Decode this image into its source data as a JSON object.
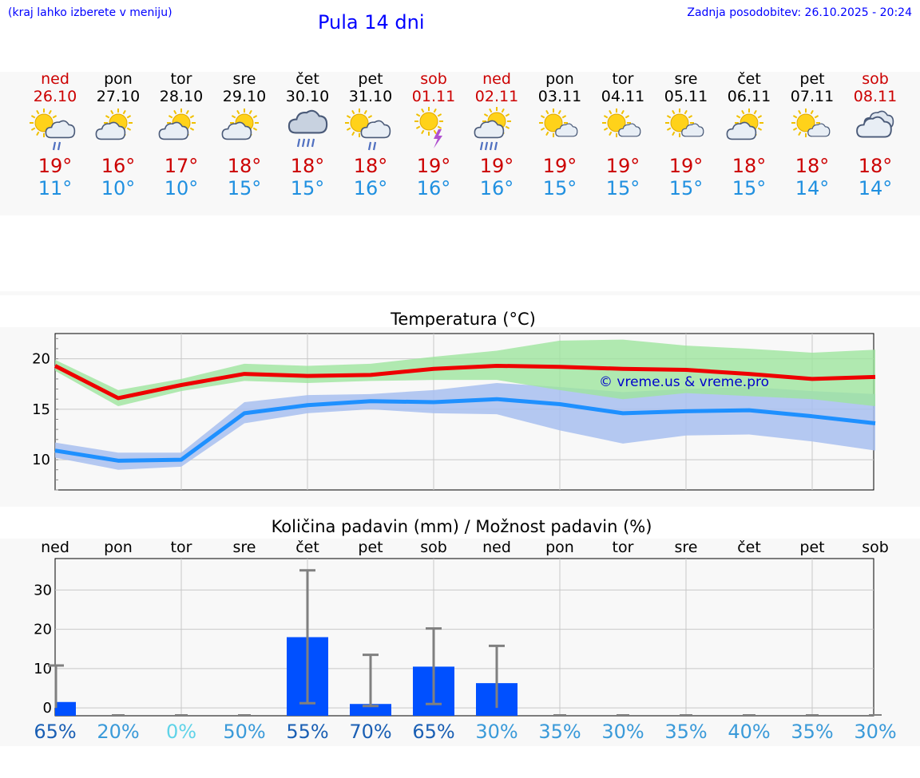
{
  "header": {
    "hint": "(kraj lahko izberete v meniju)",
    "title": "Pula 14 dni",
    "updated": "Zadnja posodobitev: 26.10.2025 - 20:24"
  },
  "days": [
    {
      "name": "ned",
      "date": "26.10",
      "weekend": true,
      "icon": "sun-cloud-rain-icon",
      "tmax": "19°",
      "tmin": "11°"
    },
    {
      "name": "pon",
      "date": "27.10",
      "weekend": false,
      "icon": "sun-cloud-icon",
      "tmax": "16°",
      "tmin": "10°"
    },
    {
      "name": "tor",
      "date": "28.10",
      "weekend": false,
      "icon": "sun-cloud-icon",
      "tmax": "17°",
      "tmin": "10°"
    },
    {
      "name": "sre",
      "date": "29.10",
      "weekend": false,
      "icon": "sun-cloud-icon",
      "tmax": "18°",
      "tmin": "15°"
    },
    {
      "name": "čet",
      "date": "30.10",
      "weekend": false,
      "icon": "cloud-heavy-rain-icon",
      "tmax": "18°",
      "tmin": "15°"
    },
    {
      "name": "pet",
      "date": "31.10",
      "weekend": false,
      "icon": "sun-cloud-rain-icon",
      "tmax": "18°",
      "tmin": "16°"
    },
    {
      "name": "sob",
      "date": "01.11",
      "weekend": true,
      "icon": "sun-thunder-icon",
      "tmax": "19°",
      "tmin": "16°"
    },
    {
      "name": "ned",
      "date": "02.11",
      "weekend": true,
      "icon": "sun-cloud-heavy-rain-icon",
      "tmax": "19°",
      "tmin": "16°"
    },
    {
      "name": "pon",
      "date": "03.11",
      "weekend": false,
      "icon": "sun-small-cloud-icon",
      "tmax": "19°",
      "tmin": "15°"
    },
    {
      "name": "tor",
      "date": "04.11",
      "weekend": false,
      "icon": "sun-small-cloud-icon",
      "tmax": "19°",
      "tmin": "15°"
    },
    {
      "name": "sre",
      "date": "05.11",
      "weekend": false,
      "icon": "sun-small-cloud-icon",
      "tmax": "19°",
      "tmin": "15°"
    },
    {
      "name": "čet",
      "date": "06.11",
      "weekend": false,
      "icon": "sun-cloud-icon",
      "tmax": "18°",
      "tmin": "15°"
    },
    {
      "name": "pet",
      "date": "07.11",
      "weekend": false,
      "icon": "sun-small-cloud-icon",
      "tmax": "18°",
      "tmin": "14°"
    },
    {
      "name": "sob",
      "date": "08.11",
      "weekend": true,
      "icon": "cloudy-icon",
      "tmax": "18°",
      "tmin": "14°"
    }
  ],
  "colors": {
    "weekend": "#cc0000",
    "tmax": "#cc0000",
    "tmin": "#2090e0",
    "max_line": "#ee0000",
    "max_band": "#9ee59e",
    "min_line": "#1e90ff",
    "min_band": "#a8c0f0",
    "bar": "#0050ff",
    "whisker": "#808080",
    "watermark": "#0000cc"
  },
  "chart_data": [
    {
      "type": "line",
      "title": "Temperatura (°C)",
      "watermark": "© vreme.us & vreme.pro",
      "ylim": [
        7,
        22.5
      ],
      "yticks": [
        10,
        15,
        20
      ],
      "x": [
        0,
        1,
        2,
        3,
        4,
        5,
        6,
        7,
        8,
        9,
        10,
        11,
        12,
        13
      ],
      "series": [
        {
          "name": "max",
          "values": [
            19.3,
            16.1,
            17.4,
            18.5,
            18.3,
            18.4,
            19.0,
            19.3,
            19.2,
            19.0,
            18.9,
            18.5,
            18.0,
            18.2
          ],
          "band_low": [
            18.8,
            15.3,
            16.8,
            17.8,
            17.6,
            17.8,
            17.9,
            17.9,
            16.9,
            16.0,
            16.6,
            16.3,
            16.0,
            15.3
          ],
          "band_high": [
            19.9,
            16.9,
            18.0,
            19.5,
            19.3,
            19.5,
            20.2,
            20.8,
            21.8,
            21.9,
            21.3,
            21.0,
            20.6,
            20.9
          ]
        },
        {
          "name": "min",
          "values": [
            10.9,
            9.9,
            10.0,
            14.6,
            15.4,
            15.8,
            15.7,
            16.0,
            15.5,
            14.6,
            14.8,
            14.9,
            14.3,
            13.6
          ],
          "band_low": [
            10.2,
            9.0,
            9.3,
            13.6,
            14.6,
            15.0,
            14.6,
            14.5,
            12.9,
            11.6,
            12.4,
            12.5,
            11.8,
            10.9
          ],
          "band_high": [
            11.7,
            10.7,
            10.7,
            15.7,
            16.4,
            16.5,
            16.9,
            17.6,
            17.2,
            16.7,
            17.0,
            17.2,
            16.8,
            16.5
          ]
        }
      ]
    },
    {
      "type": "bar",
      "title": "Količina padavin (mm) / Možnost padavin (%)",
      "ylim": [
        -2,
        38
      ],
      "yticks": [
        0,
        10,
        20,
        30
      ],
      "categories": [
        "ned",
        "pon",
        "tor",
        "sre",
        "čet",
        "pet",
        "sob",
        "ned",
        "pon",
        "tor",
        "sre",
        "čet",
        "pet",
        "sob"
      ],
      "values": [
        1.5,
        0,
        0,
        0,
        18.0,
        1.0,
        10.5,
        6.3,
        0,
        0,
        0,
        0,
        0,
        0
      ],
      "whisker_low": [
        0,
        0,
        0,
        0,
        1.2,
        0.5,
        1.0,
        0,
        0,
        0,
        0,
        0,
        0,
        0
      ],
      "whisker_high": [
        10.8,
        0,
        0,
        0,
        35.0,
        13.5,
        20.2,
        15.8,
        0,
        0,
        0,
        0,
        0,
        0
      ],
      "probability": [
        "65%",
        "20%",
        "0%",
        "50%",
        "55%",
        "70%",
        "65%",
        "30%",
        "35%",
        "30%",
        "35%",
        "40%",
        "35%",
        "30%"
      ],
      "probability_colors": [
        "#1a5fb4",
        "#3a9ad9",
        "#5fd3e8",
        "#3a9ad9",
        "#1a5fb4",
        "#1a5fb4",
        "#1a5fb4",
        "#3a9ad9",
        "#3a9ad9",
        "#3a9ad9",
        "#3a9ad9",
        "#3a9ad9",
        "#3a9ad9",
        "#3a9ad9"
      ]
    }
  ]
}
